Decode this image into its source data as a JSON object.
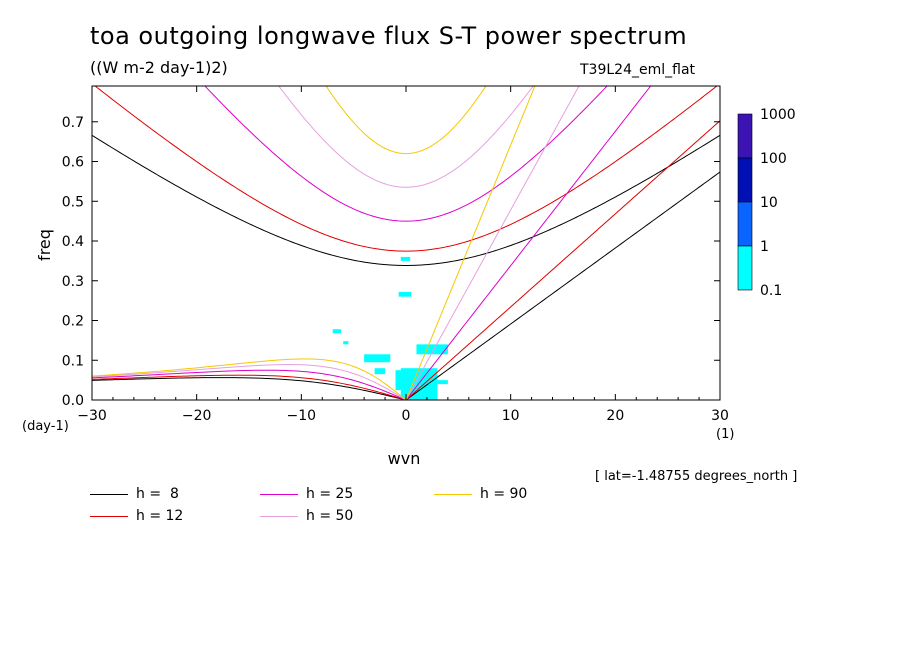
{
  "title": "toa outgoing longwave flux S-T power spectrum",
  "subtitle": "((W m-2 day-1)2)",
  "run_label": "T39L24_eml_flat",
  "lat_note": "[ lat=-1.48755 degrees_north ]",
  "chart_data": {
    "type": "contour",
    "xlabel": "wvn",
    "ylabel": "freq",
    "x_unit": "(1)",
    "y_unit": "(day-1)",
    "xlim": [
      -30,
      30
    ],
    "ylim": [
      0,
      0.79
    ],
    "x_ticks": [
      -30,
      -20,
      -10,
      0,
      10,
      20,
      30
    ],
    "y_ticks": [
      0.0,
      0.1,
      0.2,
      0.3,
      0.4,
      0.5,
      0.6,
      0.7
    ],
    "y_tick_labels": [
      "0.0",
      "0.1",
      "0.2",
      "0.3",
      "0.4",
      "0.5",
      "0.6",
      "0.7"
    ],
    "colorbar": {
      "levels": [
        "0.1",
        "1",
        "10",
        "100",
        "1000"
      ],
      "colors": [
        "#00ffff",
        "#0a64ff",
        "#0010b4",
        "#3c14b4"
      ]
    },
    "series": [
      {
        "name": "h =  8",
        "h": 8,
        "color": "#000000"
      },
      {
        "name": "h = 12",
        "h": 12,
        "color": "#e00000"
      },
      {
        "name": "h = 25",
        "h": 25,
        "color": "#dd00cc"
      },
      {
        "name": "h = 50",
        "h": 50,
        "color": "#e6a0e0"
      },
      {
        "name": "h = 90",
        "h": 90,
        "color": "#f5c800"
      }
    ],
    "fill_regions": [
      {
        "x": [
          -0.5,
          3.0
        ],
        "y": [
          0.0,
          0.08
        ]
      },
      {
        "x": [
          -1.0,
          0.5
        ],
        "y": [
          0.025,
          0.075
        ]
      },
      {
        "x": [
          1.0,
          4.0
        ],
        "y": [
          0.115,
          0.14
        ]
      },
      {
        "x": [
          -4.0,
          -1.5
        ],
        "y": [
          0.095,
          0.115
        ]
      },
      {
        "x": [
          -3.0,
          -2.0
        ],
        "y": [
          0.065,
          0.08
        ]
      },
      {
        "x": [
          -7.0,
          -6.2
        ],
        "y": [
          0.168,
          0.178
        ]
      },
      {
        "x": [
          -6.0,
          -5.5
        ],
        "y": [
          0.14,
          0.148
        ]
      },
      {
        "x": [
          -0.7,
          0.5
        ],
        "y": [
          0.26,
          0.272
        ]
      },
      {
        "x": [
          -0.5,
          0.4
        ],
        "y": [
          0.35,
          0.36
        ]
      },
      {
        "x": [
          3.0,
          4.0
        ],
        "y": [
          0.04,
          0.05
        ]
      }
    ]
  }
}
